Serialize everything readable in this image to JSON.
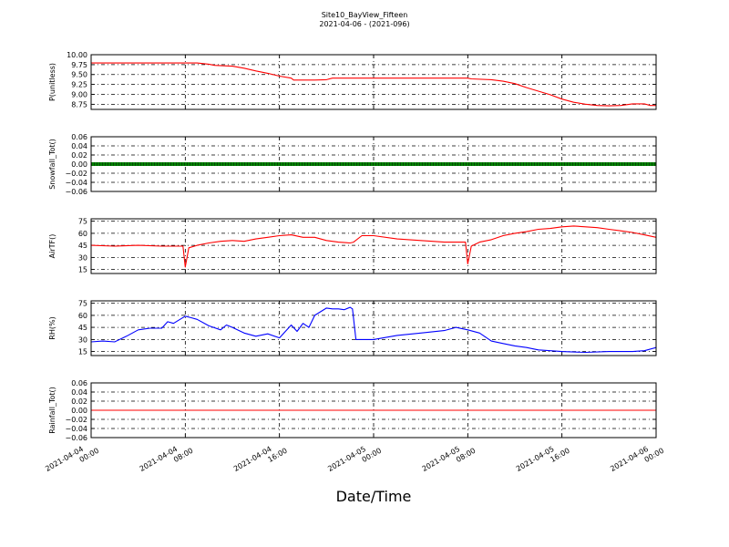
{
  "title": "Site10_BayView_Fifteen",
  "subtitle": "2021-04-06 - (2021-096)",
  "xlabel": "Date/Time",
  "chart_data": {
    "type": "line",
    "x_ticks": [
      "2021-04-04\n00:00",
      "2021-04-04\n08:00",
      "2021-04-04\n16:00",
      "2021-04-05\n00:00",
      "2021-04-05\n08:00",
      "2021-04-05\n16:00",
      "2021-04-06\n00:00"
    ],
    "x_range_hours": [
      0,
      48
    ],
    "panels": [
      {
        "ylabel": "P(unitless)",
        "color": "#ff0000",
        "ylim": [
          8.62,
          10.0
        ],
        "yticks": [
          "10.00",
          "9.75",
          "9.50",
          "9.25",
          "9.00",
          "8.75"
        ],
        "ytick_values": [
          10.0,
          9.75,
          9.5,
          9.25,
          9.0,
          8.75
        ],
        "grid": true,
        "series": {
          "x": [
            0,
            2,
            4,
            6,
            8,
            9,
            10,
            10.5,
            12,
            13,
            14,
            15,
            16,
            17,
            17.2,
            18,
            19,
            20,
            20.5,
            22,
            24,
            26,
            28,
            30,
            32,
            32.3,
            34,
            35,
            36,
            37,
            38,
            39,
            40,
            41,
            42,
            43,
            44,
            45,
            46,
            46.5,
            47,
            47.5,
            48
          ],
          "y": [
            9.79,
            9.79,
            9.79,
            9.79,
            9.79,
            9.79,
            9.76,
            9.73,
            9.71,
            9.66,
            9.59,
            9.53,
            9.46,
            9.41,
            9.36,
            9.36,
            9.36,
            9.37,
            9.41,
            9.41,
            9.41,
            9.41,
            9.41,
            9.41,
            9.41,
            9.39,
            9.37,
            9.33,
            9.27,
            9.17,
            9.08,
            8.99,
            8.88,
            8.8,
            8.75,
            8.72,
            8.71,
            8.72,
            8.76,
            8.76,
            8.76,
            8.72,
            8.72
          ]
        }
      },
      {
        "ylabel": "Snowfall_Tot()",
        "color": "#008000",
        "ylim": [
          -0.06,
          0.06
        ],
        "yticks": [
          "0.06",
          "0.04",
          "0.02",
          "0.00",
          "−0.02",
          "−0.04",
          "−0.06"
        ],
        "ytick_values": [
          0.06,
          0.04,
          0.02,
          0.0,
          -0.02,
          -0.04,
          -0.06
        ],
        "grid": true,
        "marker": "thick",
        "series": {
          "x": [
            0,
            48
          ],
          "y": [
            0.0,
            0.0
          ]
        }
      },
      {
        "ylabel": "AirTF()",
        "color": "#ff0000",
        "ylim": [
          10,
          78
        ],
        "yticks": [
          "75",
          "60",
          "45",
          "30",
          "15"
        ],
        "ytick_values": [
          75,
          60,
          45,
          30,
          15
        ],
        "grid": true,
        "series": {
          "x": [
            0,
            2,
            4,
            6,
            7.8,
            8.0,
            8.3,
            9,
            10,
            11,
            12,
            13,
            14,
            15,
            16,
            17,
            18,
            19,
            20,
            21,
            22,
            22.3,
            23,
            24,
            26,
            28,
            30,
            31.8,
            32.0,
            32.3,
            33,
            34,
            35,
            36,
            37,
            38,
            39,
            40,
            41,
            42,
            43,
            44,
            45,
            46,
            47,
            48
          ],
          "y": [
            45,
            44,
            45,
            44,
            44,
            18,
            42,
            45,
            48,
            50,
            51,
            50,
            53,
            55,
            57,
            58,
            55,
            55,
            51,
            49,
            48,
            49,
            57,
            57,
            53,
            51,
            49,
            49,
            22,
            44,
            49,
            52,
            57,
            60,
            62,
            65,
            66,
            68,
            69,
            68,
            67,
            65,
            63,
            61,
            58,
            55
          ]
        }
      },
      {
        "ylabel": "RH(%)",
        "color": "#0000ff",
        "ylim": [
          10,
          78
        ],
        "yticks": [
          "75",
          "60",
          "45",
          "30",
          "15"
        ],
        "ytick_values": [
          75,
          60,
          45,
          30,
          15
        ],
        "grid": true,
        "series": {
          "x": [
            0,
            1,
            2,
            3,
            4,
            5,
            6,
            6.5,
            7,
            8,
            8.5,
            9,
            10,
            11,
            11.5,
            12,
            13,
            14,
            15,
            16,
            17,
            17.5,
            18,
            18.5,
            19,
            20,
            20.5,
            21,
            21.5,
            22,
            22.2,
            22.5,
            24,
            26,
            28,
            30,
            31,
            32,
            33,
            34,
            35,
            36,
            37,
            38,
            40,
            42,
            44,
            46,
            47,
            48
          ],
          "y": [
            27,
            28,
            27,
            34,
            42,
            44,
            44,
            52,
            50,
            59,
            57,
            55,
            47,
            42,
            48,
            45,
            38,
            34,
            37,
            32,
            48,
            40,
            50,
            45,
            60,
            69,
            68,
            68,
            67,
            70,
            68,
            30,
            30,
            35,
            38,
            41,
            45,
            42,
            38,
            28,
            25,
            22,
            20,
            17,
            15,
            14,
            15,
            15,
            16,
            20
          ]
        }
      },
      {
        "ylabel": "Rainfall_Tot()",
        "color": "#ff0000",
        "ylim": [
          -0.06,
          0.06
        ],
        "yticks": [
          "0.06",
          "0.04",
          "0.02",
          "0.00",
          "−0.02",
          "−0.04",
          "−0.06"
        ],
        "ytick_values": [
          0.06,
          0.04,
          0.02,
          0.0,
          -0.02,
          -0.04,
          -0.06
        ],
        "grid": true,
        "series": {
          "x": [
            0,
            48
          ],
          "y": [
            0.0,
            0.0
          ]
        }
      }
    ]
  }
}
